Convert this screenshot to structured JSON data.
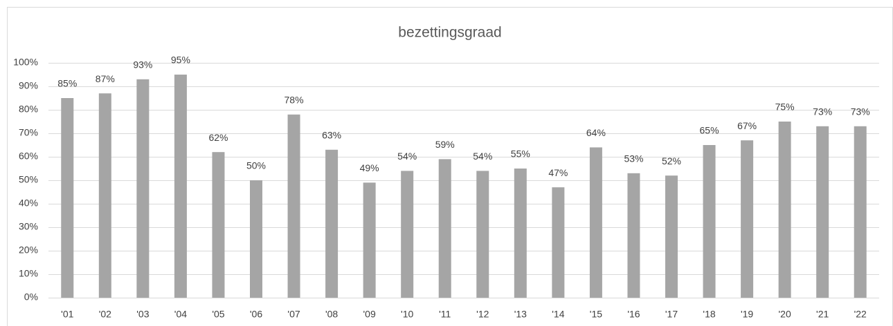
{
  "chart_data": {
    "type": "bar",
    "title": "bezettingsgraad",
    "categories": [
      "'01",
      "'02",
      "'03",
      "'04",
      "'05",
      "'06",
      "'07",
      "'08",
      "'09",
      "'10",
      "'11",
      "'12",
      "'13",
      "'14",
      "'15",
      "'16",
      "'17",
      "'18",
      "'19",
      "'20",
      "'21",
      "'22"
    ],
    "values": [
      85,
      87,
      93,
      95,
      62,
      50,
      78,
      63,
      49,
      54,
      59,
      54,
      55,
      47,
      64,
      53,
      52,
      65,
      67,
      75,
      73,
      73
    ],
    "value_labels": [
      "85%",
      "87%",
      "93%",
      "95%",
      "62%",
      "50%",
      "78%",
      "63%",
      "49%",
      "54%",
      "59%",
      "54%",
      "55%",
      "47%",
      "64%",
      "53%",
      "52%",
      "65%",
      "67%",
      "75%",
      "73%",
      "73%"
    ],
    "color": "#a5a5a5",
    "ylim": [
      0,
      100
    ],
    "yticks": [
      {
        "value": 0,
        "label": "0%"
      },
      {
        "value": 10,
        "label": "10%"
      },
      {
        "value": 20,
        "label": "20%"
      },
      {
        "value": 30,
        "label": "30%"
      },
      {
        "value": 40,
        "label": "40%"
      },
      {
        "value": 50,
        "label": "50%"
      },
      {
        "value": 60,
        "label": "60%"
      },
      {
        "value": 70,
        "label": "70%"
      },
      {
        "value": 80,
        "label": "80%"
      },
      {
        "value": 90,
        "label": "90%"
      },
      {
        "value": 100,
        "label": "100%"
      }
    ],
    "grid": true
  }
}
